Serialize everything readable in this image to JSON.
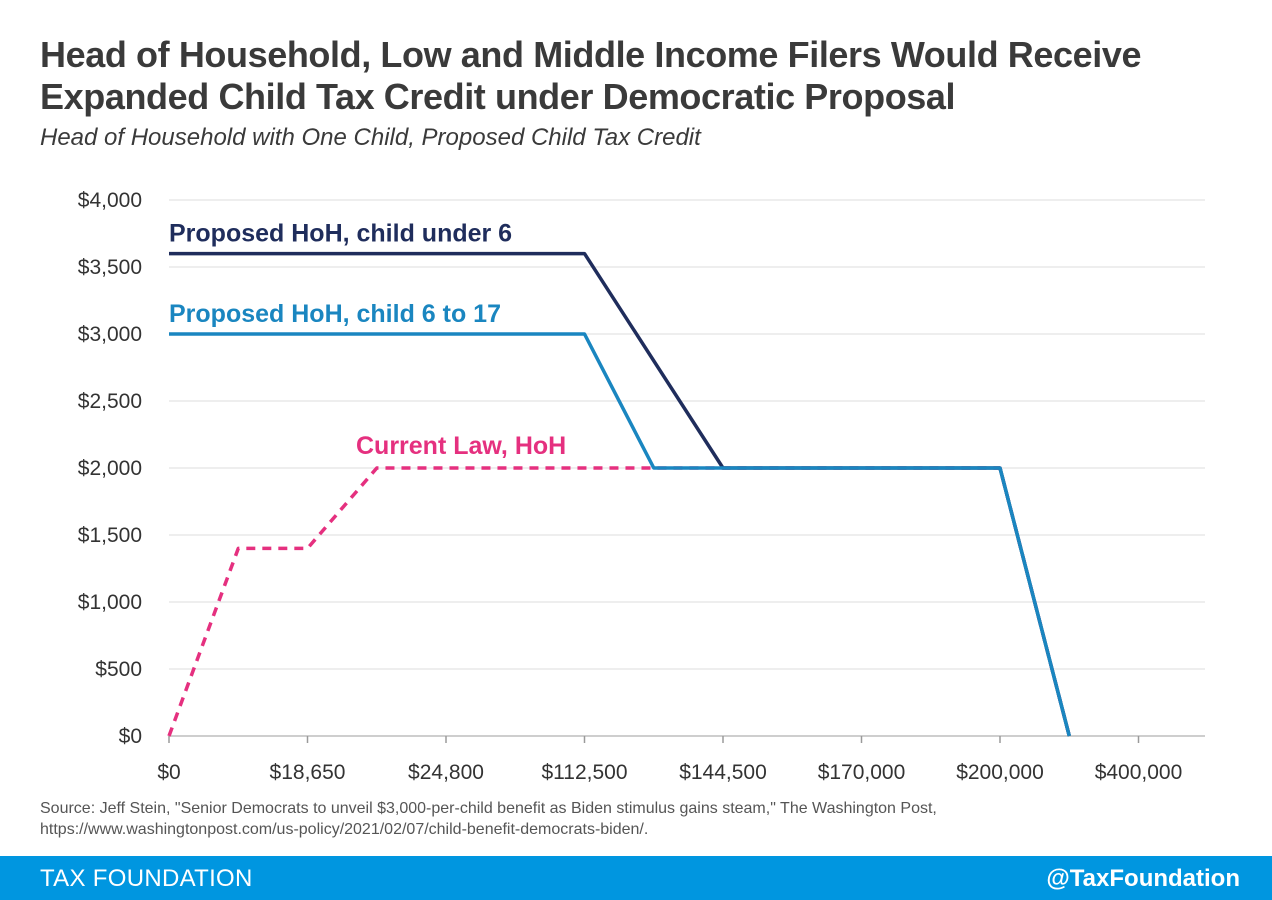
{
  "header": {
    "title": "Head of Household, Low and Middle Income Filers Would Receive Expanded Child Tax Credit under Democratic Proposal",
    "subtitle": "Head of Household with One Child, Proposed Child Tax Credit"
  },
  "source": {
    "line1": "Source: Jeff Stein, \"Senior Democrats to unveil $3,000-per-child benefit as Biden stimulus gains steam,\" The Washington Post,",
    "line2": "https://www.washingtonpost.com/us-policy/2021/02/07/child-benefit-democrats-biden/."
  },
  "footer": {
    "brand": "TAX FOUNDATION",
    "handle": "@TaxFoundation",
    "color": "#0096e0"
  },
  "chart_data": {
    "type": "line",
    "title": "",
    "xlabel": "",
    "ylabel": "",
    "x_ticks": [
      "$0",
      "$18,650",
      "$24,800",
      "$112,500",
      "$144,500",
      "$170,000",
      "$200,000",
      "$400,000"
    ],
    "y_ticks": [
      "$0",
      "$500",
      "$1,000",
      "$1,500",
      "$2,000",
      "$2,500",
      "$3,000",
      "$3,500",
      "$4,000"
    ],
    "ylim": [
      0,
      4000
    ],
    "x_axis_note": "categorical, evenly spaced ticks; x values below are in tick-index units",
    "grid": "horizontal",
    "series": [
      {
        "name": "Proposed HoH, child under 6",
        "color": "#1f2d5c",
        "style": "solid",
        "points": [
          [
            0,
            3600
          ],
          [
            3,
            3600
          ],
          [
            4,
            2000
          ],
          [
            6,
            2000
          ],
          [
            6.5,
            0
          ]
        ]
      },
      {
        "name": "Proposed HoH, child 6 to 17",
        "color": "#1a86c0",
        "style": "solid",
        "points": [
          [
            0,
            3000
          ],
          [
            3,
            3000
          ],
          [
            3.5,
            2000
          ],
          [
            6,
            2000
          ],
          [
            6.5,
            0
          ]
        ]
      },
      {
        "name": "Current Law, HoH",
        "color": "#e5307f",
        "style": "dashed",
        "points": [
          [
            0,
            0
          ],
          [
            0.5,
            1400
          ],
          [
            1,
            1400
          ],
          [
            1.5,
            2000
          ],
          [
            6,
            2000
          ],
          [
            6.5,
            0
          ]
        ]
      }
    ]
  }
}
